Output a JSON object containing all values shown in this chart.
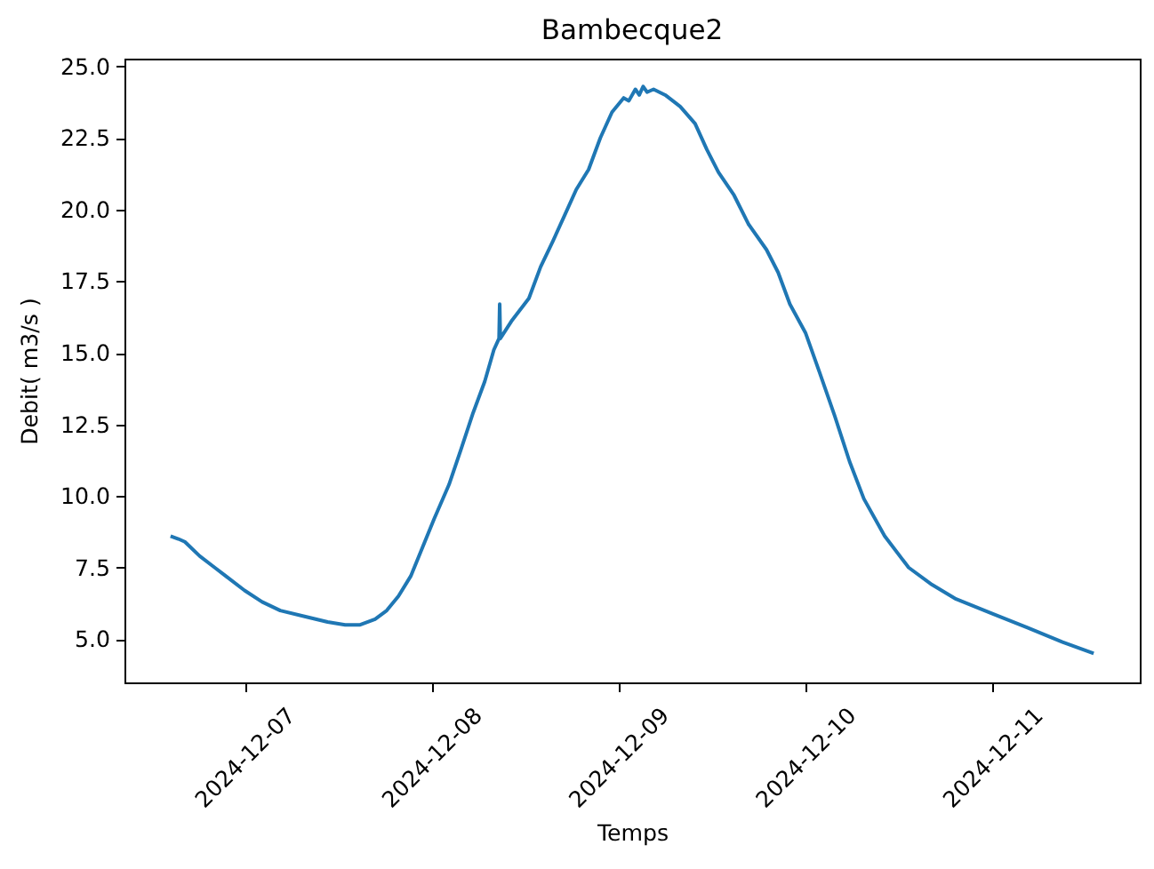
{
  "chart_data": {
    "type": "line",
    "title": "Bambecque2",
    "xlabel": "Temps",
    "ylabel": "Debit( m3/s )",
    "x": [
      "2024-12-06T14:30",
      "2024-12-06T15:30",
      "2024-12-06T16:20",
      "2024-12-06T18:15",
      "2024-12-06T20:10",
      "2024-12-06T22:05",
      "2024-12-07T00:00",
      "2024-12-07T02:15",
      "2024-12-07T04:35",
      "2024-12-07T07:35",
      "2024-12-07T10:40",
      "2024-12-07T12:55",
      "2024-12-07T14:50",
      "2024-12-07T16:45",
      "2024-12-07T18:15",
      "2024-12-07T19:45",
      "2024-12-07T21:20",
      "2024-12-07T22:50",
      "2024-12-08T00:20",
      "2024-12-08T02:15",
      "2024-12-08T03:45",
      "2024-12-08T05:20",
      "2024-12-08T06:50",
      "2024-12-08T08:00",
      "2024-12-08T08:40",
      "2024-12-08T08:45",
      "2024-12-08T08:50",
      "2024-12-08T10:15",
      "2024-12-08T12:30",
      "2024-12-08T14:00",
      "2024-12-08T15:35",
      "2024-12-08T17:05",
      "2024-12-08T18:35",
      "2024-12-08T20:10",
      "2024-12-08T21:40",
      "2024-12-08T23:10",
      "2024-12-09T00:40",
      "2024-12-09T01:20",
      "2024-12-09T02:10",
      "2024-12-09T02:40",
      "2024-12-09T03:10",
      "2024-12-09T03:40",
      "2024-12-09T04:30",
      "2024-12-09T06:00",
      "2024-12-09T07:55",
      "2024-12-09T09:50",
      "2024-12-09T11:20",
      "2024-12-09T12:50",
      "2024-12-09T14:50",
      "2024-12-09T16:40",
      "2024-12-09T19:00",
      "2024-12-09T20:30",
      "2024-12-09T22:00",
      "2024-12-10T00:00",
      "2024-12-10T01:50",
      "2024-12-10T03:45",
      "2024-12-10T05:40",
      "2024-12-10T07:30",
      "2024-12-10T10:10",
      "2024-12-10T13:15",
      "2024-12-10T16:15",
      "2024-12-10T19:20",
      "2024-12-10T23:55",
      "2024-12-11T04:30",
      "2024-12-11T09:00",
      "2024-12-11T13:00"
    ],
    "series": [
      {
        "color": "#1f77b4",
        "values": [
          8.6,
          8.5,
          8.4,
          7.9,
          7.5,
          7.1,
          6.7,
          6.3,
          6.0,
          5.8,
          5.6,
          5.5,
          5.5,
          5.7,
          6.0,
          6.5,
          7.2,
          8.2,
          9.2,
          10.4,
          11.6,
          12.9,
          14.0,
          15.1,
          15.5,
          16.7,
          15.5,
          16.1,
          16.9,
          18.0,
          18.9,
          19.8,
          20.7,
          21.4,
          22.5,
          23.4,
          23.9,
          23.8,
          24.2,
          24.0,
          24.3,
          24.1,
          24.2,
          24.0,
          23.6,
          23.0,
          22.1,
          21.3,
          20.5,
          19.5,
          18.6,
          17.8,
          16.7,
          15.7,
          14.3,
          12.8,
          11.2,
          9.9,
          8.6,
          7.5,
          6.9,
          6.4,
          5.9,
          5.4,
          4.9,
          4.5
        ]
      }
    ],
    "xlim": [
      "2024-12-06T08:35",
      "2024-12-11T18:55"
    ],
    "ylim": [
      3.49,
      25.27
    ],
    "xticks": [
      "2024-12-07",
      "2024-12-08",
      "2024-12-09",
      "2024-12-10",
      "2024-12-11"
    ],
    "yticks": [
      {
        "value": 5,
        "label": "5.0"
      },
      {
        "value": 7.5,
        "label": "7.5"
      },
      {
        "value": 10,
        "label": "10.0"
      },
      {
        "value": 12.5,
        "label": "12.5"
      },
      {
        "value": 15,
        "label": "15.0"
      },
      {
        "value": 17.5,
        "label": "17.5"
      },
      {
        "value": 20,
        "label": "20.0"
      },
      {
        "value": 22.5,
        "label": "22.5"
      },
      {
        "value": 25,
        "label": "25.0"
      }
    ],
    "line_style": "solid"
  }
}
